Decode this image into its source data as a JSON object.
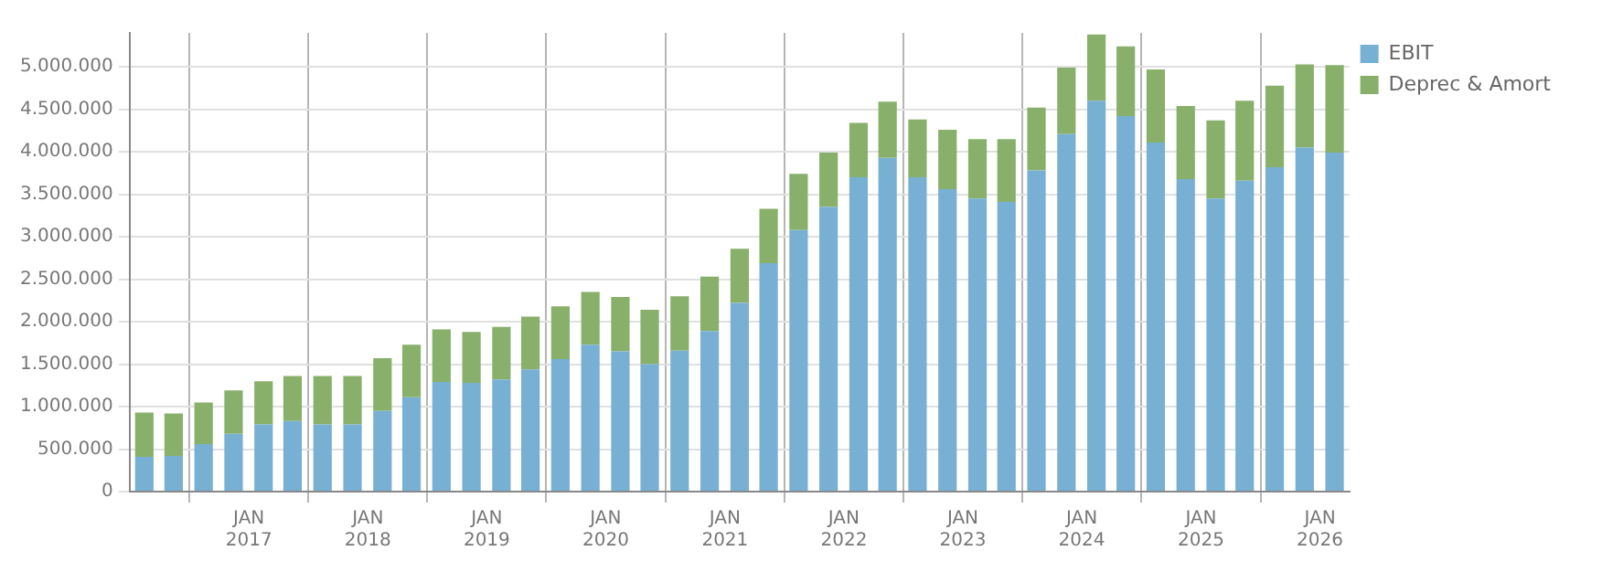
{
  "chart_data": {
    "type": "bar",
    "stacked": true,
    "x": [
      "2016-02-15",
      "2016-05-15",
      "2016-08-15",
      "2016-11-15",
      "2017-02-15",
      "2017-05-15",
      "2017-08-15",
      "2017-11-15",
      "2018-02-15",
      "2018-05-15",
      "2018-08-15",
      "2018-11-15",
      "2019-02-15",
      "2019-05-15",
      "2019-08-15",
      "2019-11-15",
      "2020-02-15",
      "2020-05-15",
      "2020-08-15",
      "2020-11-15",
      "2021-02-15",
      "2021-05-15",
      "2021-08-15",
      "2021-11-15",
      "2022-02-15",
      "2022-05-15",
      "2022-08-15",
      "2022-11-15",
      "2023-02-15",
      "2023-05-15",
      "2023-08-15",
      "2023-11-15",
      "2024-02-15",
      "2024-05-15",
      "2024-08-15",
      "2024-11-15",
      "2025-02-15",
      "2025-05-15",
      "2025-08-15",
      "2025-11-15",
      "2026-02-15"
    ],
    "series": [
      {
        "name": "EBIT",
        "color": "#78b0d3",
        "values": [
          410000,
          420000,
          560000,
          680000,
          790000,
          830000,
          790000,
          790000,
          950000,
          1110000,
          1290000,
          1280000,
          1320000,
          1440000,
          1560000,
          1730000,
          1650000,
          1500000,
          1660000,
          1890000,
          2220000,
          2690000,
          3080000,
          3350000,
          3700000,
          3930000,
          3700000,
          3560000,
          3450000,
          3410000,
          3780000,
          4210000,
          4600000,
          4420000,
          4110000,
          3680000,
          3450000,
          3660000,
          3820000,
          4050000,
          3990000
        ]
      },
      {
        "name": "Deprec & Amort",
        "color": "#88b06a",
        "values": [
          520000,
          500000,
          490000,
          510000,
          510000,
          530000,
          570000,
          570000,
          620000,
          620000,
          620000,
          600000,
          620000,
          620000,
          620000,
          620000,
          640000,
          640000,
          640000,
          640000,
          640000,
          640000,
          660000,
          640000,
          640000,
          660000,
          680000,
          700000,
          700000,
          740000,
          740000,
          780000,
          780000,
          820000,
          860000,
          860000,
          920000,
          940000,
          960000,
          980000,
          1030000
        ]
      }
    ],
    "xlim": [
      "2016-01-01",
      "2026-04-01"
    ],
    "xticks": [
      {
        "value": "2017-01-01",
        "label": "JAN\n2017"
      },
      {
        "value": "2018-01-01",
        "label": "JAN\n2018"
      },
      {
        "value": "2019-01-01",
        "label": "JAN\n2019"
      },
      {
        "value": "2020-01-01",
        "label": "JAN\n2020"
      },
      {
        "value": "2021-01-01",
        "label": "JAN\n2021"
      },
      {
        "value": "2022-01-01",
        "label": "JAN\n2022"
      },
      {
        "value": "2023-01-01",
        "label": "JAN\n2023"
      },
      {
        "value": "2024-01-01",
        "label": "JAN\n2024"
      },
      {
        "value": "2025-01-01",
        "label": "JAN\n2025"
      },
      {
        "value": "2026-01-01",
        "label": "JAN\n2026"
      }
    ],
    "ylim": [
      0,
      5400000
    ],
    "yticks": [
      0,
      {
        "value": 500000,
        "label": "500.000"
      },
      {
        "value": 1000000,
        "label": "1.000.000"
      },
      {
        "value": 1500000,
        "label": "1.500.000"
      },
      {
        "value": 2000000,
        "label": "2.000.000"
      },
      {
        "value": 2500000,
        "label": "2.500.000"
      },
      {
        "value": 3000000,
        "label": "3.000.000"
      },
      {
        "value": 3500000,
        "label": "3.500.000"
      },
      {
        "value": 4000000,
        "label": "4.000.000"
      },
      {
        "value": 4500000,
        "label": "4.500.000"
      },
      {
        "value": 5000000,
        "label": "5.000.000"
      }
    ],
    "grid": true,
    "legend": "right"
  }
}
